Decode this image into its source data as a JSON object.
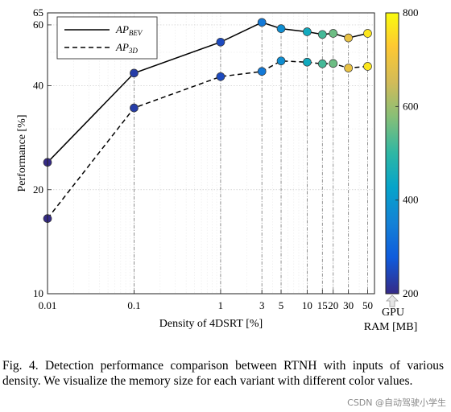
{
  "caption": "Fig. 4.  Detection performance comparison between RTNH with inputs of various density. We visualize the memory size for each variant with different color values.",
  "watermark": "CSDN @自动驾驶小学生",
  "chart_data": {
    "type": "line",
    "xlabel": "Density of 4DSRT [%]",
    "ylabel": "Performance [%]",
    "x_scale": "log",
    "y_scale": "log",
    "xlim": [
      0.01,
      60
    ],
    "ylim": [
      10,
      65
    ],
    "xticks": [
      0.01,
      0.1,
      1,
      3,
      5,
      10,
      15,
      20,
      30,
      50
    ],
    "xtick_labels": [
      "0.01",
      "0.1",
      "1",
      "3",
      "5",
      "10",
      "15",
      "20",
      "30",
      "50"
    ],
    "yticks": [
      10,
      20,
      40,
      60,
      65
    ],
    "ytick_labels": [
      "10",
      "20",
      "40",
      "60",
      "65"
    ],
    "grid": true,
    "legend_position": "top-left",
    "series": [
      {
        "name": "AP_BEV",
        "legend_main": "AP",
        "legend_sub": "BEV",
        "line_style": "solid",
        "x": [
          0.01,
          0.1,
          1,
          3,
          5,
          10,
          15,
          20,
          30,
          50
        ],
        "y": [
          24.0,
          43.5,
          53.5,
          61.0,
          58.5,
          57.3,
          56.3,
          56.7,
          55.0,
          56.7
        ]
      },
      {
        "name": "AP_3D",
        "legend_main": "AP",
        "legend_sub": "3D",
        "line_style": "dashed",
        "x": [
          0.01,
          0.1,
          1,
          3,
          5,
          10,
          15,
          20,
          30,
          50
        ],
        "y": [
          16.5,
          34.5,
          42.5,
          44.0,
          47.2,
          46.8,
          46.3,
          46.4,
          45.0,
          45.5
        ]
      }
    ],
    "point_color_values": [
      200,
      230,
      250,
      335,
      380,
      450,
      520,
      555,
      690,
      770
    ],
    "colorbar": {
      "label_line1": "GPU",
      "label_line2": "RAM [MB]",
      "range": [
        200,
        800
      ],
      "ticks": [
        200,
        400,
        600,
        800
      ],
      "tick_labels": [
        "200",
        "400",
        "600",
        "800"
      ],
      "colormap": "parula"
    }
  }
}
